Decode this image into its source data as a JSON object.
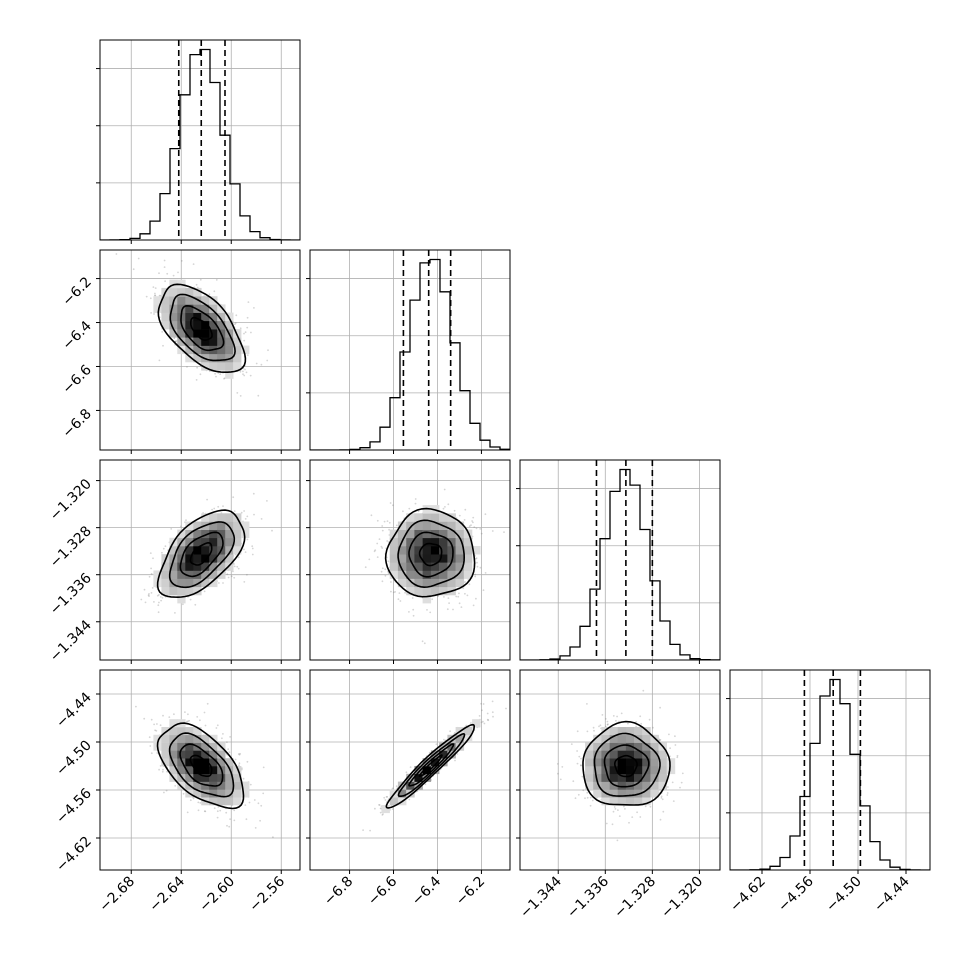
{
  "chart_data": {
    "type": "corner",
    "grid": true,
    "parameters": [
      {
        "index": 0,
        "range": [
          -2.705,
          -2.545
        ],
        "ticks": [
          -2.68,
          -2.64,
          -2.6,
          -2.56
        ],
        "tick_labels": [
          "−2.68",
          "−2.64",
          "−2.60",
          "−2.56"
        ],
        "mean": -2.624,
        "sd": 0.017,
        "quantiles": [
          -2.642,
          -2.624,
          -2.605
        ]
      },
      {
        "index": 1,
        "range": [
          -6.98,
          -6.07
        ],
        "ticks": [
          -6.8,
          -6.6,
          -6.4,
          -6.2
        ],
        "tick_labels": [
          "−6.8",
          "−6.6",
          "−6.4",
          "−6.2"
        ],
        "mean": -6.43,
        "sd": 0.1,
        "quantiles": [
          -6.555,
          -6.44,
          -6.34
        ]
      },
      {
        "index": 2,
        "range": [
          -1.3505,
          -1.3165
        ],
        "ticks": [
          -1.344,
          -1.336,
          -1.328,
          -1.32
        ],
        "tick_labels": [
          "−1.344",
          "−1.336",
          "−1.328",
          "−1.320"
        ],
        "mean": -1.3325,
        "sd": 0.0037,
        "quantiles": [
          -1.3375,
          -1.3325,
          -1.328
        ]
      },
      {
        "index": 3,
        "range": [
          -4.66,
          -4.41
        ],
        "ticks": [
          -4.62,
          -4.56,
          -4.5,
          -4.44
        ],
        "tick_labels": [
          "−4.62",
          "−4.56",
          "−4.50",
          "−4.44"
        ],
        "mean": -4.53,
        "sd": 0.026,
        "quantiles": [
          -4.567,
          -4.531,
          -4.497
        ]
      }
    ],
    "correlations": [
      {
        "pair": [
          1,
          0
        ],
        "rho": -0.55
      },
      {
        "pair": [
          2,
          0
        ],
        "rho": 0.55
      },
      {
        "pair": [
          2,
          1
        ],
        "rho": 0.0
      },
      {
        "pair": [
          3,
          0
        ],
        "rho": -0.55
      },
      {
        "pair": [
          3,
          1
        ],
        "rho": 0.96
      },
      {
        "pair": [
          3,
          2
        ],
        "rho": 0.0
      }
    ],
    "histogram": {
      "bins": 20,
      "style": "step",
      "color": "#000000"
    },
    "contours": {
      "color": "#000000",
      "fill": "grayscale"
    },
    "quantile_line_style": "dashed"
  }
}
